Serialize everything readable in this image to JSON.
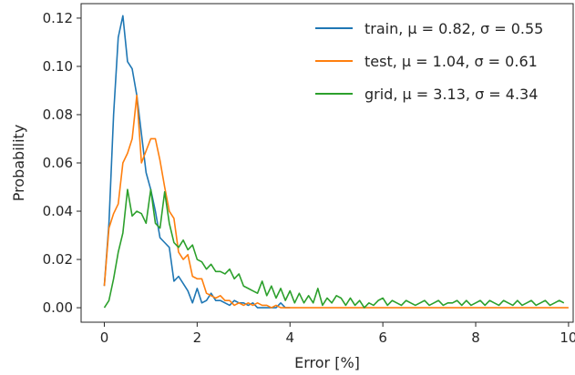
{
  "chart_data": {
    "type": "line",
    "title": "",
    "xlabel": "Error [%]",
    "ylabel": "Probability",
    "xlim": [
      -0.5,
      10.1
    ],
    "ylim": [
      -0.006,
      0.126
    ],
    "xticks": [
      0,
      2,
      4,
      6,
      8,
      10
    ],
    "xtick_labels": [
      "0",
      "2",
      "4",
      "6",
      "8",
      "10"
    ],
    "yticks": [
      0.0,
      0.02,
      0.04,
      0.06,
      0.08,
      0.1,
      0.12
    ],
    "ytick_labels": [
      "0.00",
      "0.02",
      "0.04",
      "0.06",
      "0.08",
      "0.10",
      "0.12"
    ],
    "grid": false,
    "legend_position": "top-right",
    "series": [
      {
        "name": "train,  μ = 0.82,  σ = 0.55",
        "color": "#1f77b4",
        "x": [
          0,
          0.1,
          0.2,
          0.3,
          0.4,
          0.5,
          0.6,
          0.7,
          0.8,
          0.9,
          1.0,
          1.1,
          1.2,
          1.3,
          1.4,
          1.5,
          1.6,
          1.7,
          1.8,
          1.9,
          2.0,
          2.1,
          2.2,
          2.3,
          2.4,
          2.5,
          2.6,
          2.7,
          2.8,
          2.9,
          3.0,
          3.1,
          3.2,
          3.3,
          3.4,
          3.5,
          3.6,
          3.7,
          3.8,
          3.9,
          4.0
        ],
        "y": [
          0.009,
          0.035,
          0.08,
          0.112,
          0.121,
          0.102,
          0.099,
          0.088,
          0.072,
          0.056,
          0.049,
          0.04,
          0.029,
          0.027,
          0.025,
          0.011,
          0.013,
          0.01,
          0.007,
          0.002,
          0.008,
          0.002,
          0.003,
          0.006,
          0.003,
          0.003,
          0.002,
          0.001,
          0.003,
          0.002,
          0.002,
          0.001,
          0.002,
          0.0,
          0.0,
          0.0,
          0.0,
          0.0,
          0.002,
          0.0,
          0.0
        ]
      },
      {
        "name": "test,  μ = 1.04,  σ = 0.61",
        "color": "#ff7f0e",
        "x": [
          0,
          0.1,
          0.2,
          0.3,
          0.4,
          0.5,
          0.6,
          0.7,
          0.8,
          0.9,
          1.0,
          1.1,
          1.2,
          1.3,
          1.4,
          1.5,
          1.6,
          1.7,
          1.8,
          1.9,
          2.0,
          2.1,
          2.2,
          2.3,
          2.4,
          2.5,
          2.6,
          2.7,
          2.8,
          2.9,
          3.0,
          3.1,
          3.2,
          3.3,
          3.4,
          3.5,
          3.6,
          3.7,
          3.8,
          3.9,
          4.0,
          4.5,
          5,
          6,
          7,
          8,
          9,
          10
        ],
        "y": [
          0.009,
          0.033,
          0.039,
          0.043,
          0.06,
          0.064,
          0.07,
          0.088,
          0.06,
          0.065,
          0.07,
          0.07,
          0.061,
          0.05,
          0.04,
          0.037,
          0.023,
          0.02,
          0.022,
          0.013,
          0.012,
          0.012,
          0.006,
          0.005,
          0.004,
          0.005,
          0.003,
          0.003,
          0.001,
          0.002,
          0.001,
          0.002,
          0.001,
          0.002,
          0.001,
          0.001,
          0.0,
          0.001,
          0.0,
          0.0,
          0.0,
          0.0,
          0.0,
          0.0,
          0.0,
          0.0,
          0.0,
          0.0
        ]
      },
      {
        "name": "grid,  μ = 3.13,  σ = 4.34",
        "color": "#2ca02c",
        "x": [
          0,
          0.1,
          0.2,
          0.3,
          0.4,
          0.5,
          0.6,
          0.7,
          0.8,
          0.9,
          1.0,
          1.1,
          1.2,
          1.3,
          1.4,
          1.5,
          1.6,
          1.7,
          1.8,
          1.9,
          2.0,
          2.1,
          2.2,
          2.3,
          2.4,
          2.5,
          2.6,
          2.7,
          2.8,
          2.9,
          3.0,
          3.1,
          3.2,
          3.3,
          3.4,
          3.5,
          3.6,
          3.7,
          3.8,
          3.9,
          4.0,
          4.1,
          4.2,
          4.3,
          4.4,
          4.5,
          4.6,
          4.7,
          4.8,
          4.9,
          5.0,
          5.1,
          5.2,
          5.3,
          5.4,
          5.5,
          5.6,
          5.7,
          5.8,
          5.9,
          6.0,
          6.1,
          6.2,
          6.3,
          6.4,
          6.5,
          6.6,
          6.7,
          6.8,
          6.9,
          7.0,
          7.1,
          7.2,
          7.3,
          7.4,
          7.5,
          7.6,
          7.7,
          7.8,
          7.9,
          8.0,
          8.1,
          8.2,
          8.3,
          8.4,
          8.5,
          8.6,
          8.7,
          8.8,
          8.9,
          9.0,
          9.1,
          9.2,
          9.3,
          9.4,
          9.5,
          9.6,
          9.7,
          9.8,
          9.9
        ],
        "y": [
          0.0,
          0.003,
          0.012,
          0.023,
          0.031,
          0.049,
          0.038,
          0.04,
          0.039,
          0.035,
          0.049,
          0.035,
          0.033,
          0.048,
          0.035,
          0.027,
          0.025,
          0.028,
          0.024,
          0.026,
          0.02,
          0.019,
          0.016,
          0.018,
          0.015,
          0.015,
          0.014,
          0.016,
          0.012,
          0.014,
          0.009,
          0.008,
          0.007,
          0.006,
          0.011,
          0.005,
          0.009,
          0.004,
          0.008,
          0.003,
          0.007,
          0.002,
          0.006,
          0.002,
          0.005,
          0.002,
          0.008,
          0.001,
          0.004,
          0.002,
          0.005,
          0.004,
          0.001,
          0.004,
          0.001,
          0.003,
          0.0,
          0.002,
          0.001,
          0.003,
          0.004,
          0.001,
          0.003,
          0.002,
          0.001,
          0.003,
          0.002,
          0.001,
          0.002,
          0.003,
          0.001,
          0.002,
          0.003,
          0.001,
          0.002,
          0.002,
          0.003,
          0.001,
          0.003,
          0.001,
          0.002,
          0.003,
          0.001,
          0.003,
          0.002,
          0.001,
          0.003,
          0.002,
          0.001,
          0.003,
          0.001,
          0.002,
          0.003,
          0.001,
          0.002,
          0.003,
          0.001,
          0.002,
          0.003,
          0.002
        ]
      }
    ]
  }
}
